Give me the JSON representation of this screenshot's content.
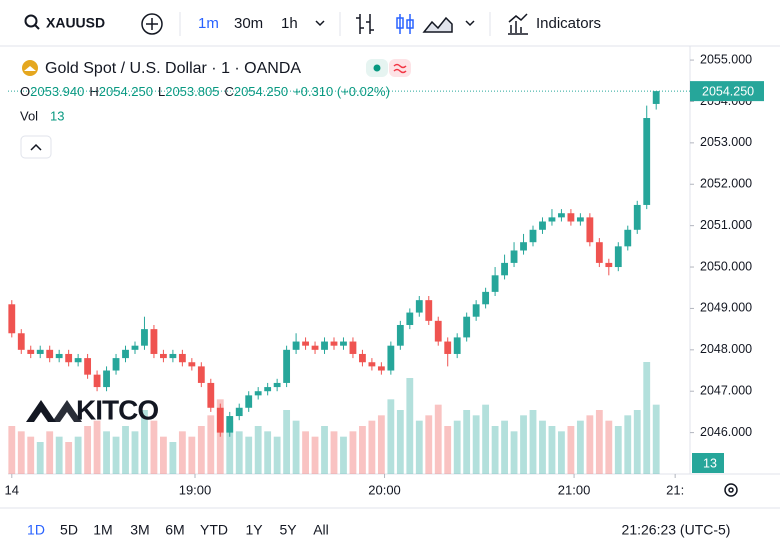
{
  "toolbar": {
    "symbol": "XAUUSD",
    "intervals": [
      "1m",
      "30m",
      "1h"
    ],
    "indicators": "Indicators"
  },
  "legend": {
    "title": "Gold Spot / U.S. Dollar · 1 · OANDA",
    "ohlc": [
      {
        "key": "O",
        "value": "2053.940"
      },
      {
        "key": "H",
        "value": "2054.250"
      },
      {
        "key": "L",
        "value": "2053.805"
      },
      {
        "key": "C",
        "value": "2054.250"
      }
    ],
    "change": "+0.310 (+0.02%)",
    "vol_label": "Vol"
  },
  "watermark": "KITCO",
  "chart_data": {
    "type": "candlestick",
    "x": [
      2,
      5,
      8,
      11,
      14,
      17,
      20,
      23,
      26,
      29,
      32,
      35,
      38,
      41,
      44,
      47,
      50,
      53,
      56,
      59,
      62,
      65,
      68,
      71,
      74,
      77,
      80,
      83,
      86,
      89,
      92,
      95,
      98,
      101,
      104,
      107,
      110,
      113,
      116,
      119,
      122,
      125,
      128,
      131,
      134,
      137,
      140,
      143,
      146,
      149,
      152,
      155,
      158,
      161,
      164,
      167,
      170,
      173,
      176,
      179,
      182,
      185,
      188,
      191,
      194,
      197,
      200,
      203,
      206
    ],
    "open": [
      2049.1,
      2048.4,
      2048.0,
      2047.9,
      2048.0,
      2047.8,
      2047.9,
      2047.7,
      2047.8,
      2047.4,
      2047.1,
      2047.5,
      2047.8,
      2048.0,
      2048.1,
      2048.5,
      2047.9,
      2047.8,
      2047.9,
      2047.7,
      2047.6,
      2047.2,
      2046.6,
      2046.0,
      2046.4,
      2046.6,
      2046.9,
      2047.0,
      2047.1,
      2047.2,
      2048.0,
      2048.2,
      2048.1,
      2048.0,
      2048.2,
      2048.1,
      2048.2,
      2047.9,
      2047.7,
      2047.6,
      2047.5,
      2048.1,
      2048.6,
      2048.9,
      2049.2,
      2048.7,
      2048.2,
      2047.9,
      2048.3,
      2048.8,
      2049.1,
      2049.4,
      2049.8,
      2050.1,
      2050.4,
      2050.6,
      2050.9,
      2051.1,
      2051.2,
      2051.3,
      2051.1,
      2051.2,
      2050.6,
      2050.1,
      2050.0,
      2050.5,
      2050.9,
      2051.5,
      2053.94
    ],
    "high": [
      2049.2,
      2048.5,
      2048.1,
      2048.1,
      2048.1,
      2048.0,
      2048.0,
      2047.9,
      2047.9,
      2047.5,
      2047.6,
      2047.9,
      2048.1,
      2048.2,
      2048.8,
      2048.6,
      2048.0,
      2048.0,
      2048.0,
      2047.8,
      2047.7,
      2047.3,
      2046.7,
      2046.5,
      2046.7,
      2047.0,
      2047.1,
      2047.2,
      2047.3,
      2048.1,
      2048.4,
      2048.3,
      2048.2,
      2048.3,
      2048.3,
      2048.3,
      2048.3,
      2048.0,
      2047.8,
      2047.7,
      2048.2,
      2048.7,
      2049.0,
      2049.3,
      2049.3,
      2048.8,
      2048.3,
      2048.4,
      2048.9,
      2049.2,
      2049.5,
      2050.0,
      2050.3,
      2050.6,
      2050.8,
      2051.0,
      2051.2,
      2051.4,
      2051.4,
      2051.4,
      2051.3,
      2051.3,
      2050.7,
      2050.2,
      2050.6,
      2051.0,
      2051.6,
      2053.9,
      2054.25
    ],
    "low": [
      2048.3,
      2047.9,
      2047.8,
      2047.8,
      2047.7,
      2047.7,
      2047.6,
      2047.6,
      2047.3,
      2047.0,
      2047.0,
      2047.4,
      2047.7,
      2047.9,
      2048.0,
      2047.8,
      2047.7,
      2047.7,
      2047.6,
      2047.5,
      2047.1,
      2046.5,
      2045.9,
      2045.9,
      2046.3,
      2046.5,
      2046.8,
      2046.9,
      2047.0,
      2047.1,
      2047.9,
      2048.0,
      2047.9,
      2047.9,
      2048.0,
      2048.0,
      2047.8,
      2047.6,
      2047.5,
      2047.4,
      2047.4,
      2048.0,
      2048.5,
      2048.8,
      2048.6,
      2048.1,
      2047.6,
      2047.8,
      2048.2,
      2048.7,
      2049.0,
      2049.3,
      2049.7,
      2050.0,
      2050.3,
      2050.5,
      2050.8,
      2051.0,
      2051.1,
      2051.0,
      2051.0,
      2050.5,
      2050.0,
      2049.8,
      2049.9,
      2050.4,
      2050.8,
      2051.4,
      2053.805
    ],
    "close": [
      2048.4,
      2048.0,
      2047.9,
      2048.0,
      2047.8,
      2047.9,
      2047.7,
      2047.8,
      2047.4,
      2047.1,
      2047.5,
      2047.8,
      2048.0,
      2048.1,
      2048.5,
      2047.9,
      2047.8,
      2047.9,
      2047.7,
      2047.6,
      2047.2,
      2046.6,
      2046.0,
      2046.4,
      2046.6,
      2046.9,
      2047.0,
      2047.1,
      2047.2,
      2048.0,
      2048.2,
      2048.1,
      2048.0,
      2048.2,
      2048.1,
      2048.2,
      2047.9,
      2047.7,
      2047.6,
      2047.5,
      2048.1,
      2048.6,
      2048.9,
      2049.2,
      2048.7,
      2048.2,
      2047.9,
      2048.3,
      2048.8,
      2049.1,
      2049.4,
      2049.8,
      2050.1,
      2050.4,
      2050.6,
      2050.9,
      2051.1,
      2051.2,
      2051.3,
      2051.1,
      2051.2,
      2050.6,
      2050.1,
      2050.0,
      2050.5,
      2050.9,
      2051.5,
      2053.6,
      2054.25
    ],
    "volume": [
      9,
      8,
      7,
      6,
      8,
      7,
      6,
      7,
      9,
      10,
      8,
      7,
      9,
      8,
      12,
      10,
      7,
      6,
      8,
      7,
      9,
      11,
      14,
      10,
      8,
      7,
      9,
      8,
      7,
      12,
      10,
      8,
      7,
      9,
      8,
      7,
      8,
      9,
      10,
      11,
      14,
      12,
      18,
      10,
      11,
      13,
      9,
      10,
      12,
      11,
      13,
      9,
      10,
      8,
      11,
      12,
      10,
      9,
      8,
      9,
      10,
      11,
      12,
      10,
      9,
      11,
      12,
      21,
      13
    ],
    "up_color": "#26a69a",
    "down_color": "#ef5350",
    "xlim": [
      0.8,
      216.7
    ],
    "xticks": [
      {
        "value": 2,
        "label": "14"
      },
      {
        "value": 60,
        "label": "19:00"
      },
      {
        "value": 120,
        "label": "20:00"
      },
      {
        "value": 180,
        "label": "21:00"
      },
      {
        "value": 212,
        "label": "21:"
      }
    ],
    "ylim": [
      2045.0,
      2055.34
    ],
    "yticks": [
      {
        "value": 2046,
        "label": "2046.000"
      },
      {
        "value": 2047,
        "label": "2047.000"
      },
      {
        "value": 2048,
        "label": "2048.000"
      },
      {
        "value": 2049,
        "label": "2049.000"
      },
      {
        "value": 2050,
        "label": "2050.000"
      },
      {
        "value": 2051,
        "label": "2051.000"
      },
      {
        "value": 2052,
        "label": "2052.000"
      },
      {
        "value": 2053,
        "label": "2053.000"
      },
      {
        "value": 2054,
        "label": "2054.000"
      },
      {
        "value": 2055,
        "label": "2055.000"
      }
    ],
    "volume_lim": [
      0,
      30
    ],
    "last_price": {
      "value": 2054.25,
      "label": "2054.250"
    },
    "grid": false
  },
  "footer": {
    "ranges": [
      "1D",
      "5D",
      "1M",
      "3M",
      "6M",
      "YTD",
      "1Y",
      "5Y",
      "All"
    ],
    "clock": "21:26:23 (UTC-5)"
  }
}
